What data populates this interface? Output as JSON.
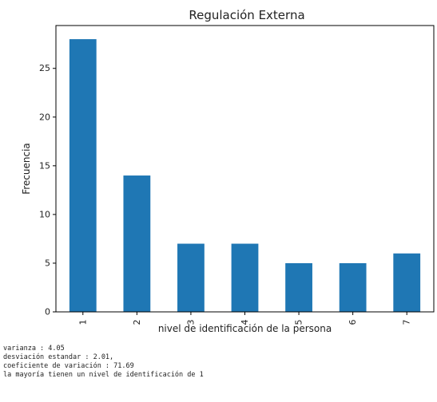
{
  "chart_data": {
    "type": "bar",
    "title": "Regulación Externa",
    "xlabel": "nivel de identificación de la persona",
    "ylabel": "Frecuencia",
    "categories": [
      "1",
      "2",
      "3",
      "4",
      "5",
      "6",
      "7"
    ],
    "values": [
      28,
      14,
      7,
      7,
      5,
      5,
      6
    ],
    "ylim": [
      0,
      29.4
    ],
    "yticks": [
      0,
      5,
      10,
      15,
      20,
      25
    ],
    "bar_color": "#1f77b4",
    "grid": false,
    "legend": "none"
  },
  "output_lines": [
    "varianza : 4.05",
    "desviación estandar : 2.01,",
    "coeficiente de variación : 71.69",
    "la mayoría tienen un nivel de identificación de 1"
  ]
}
